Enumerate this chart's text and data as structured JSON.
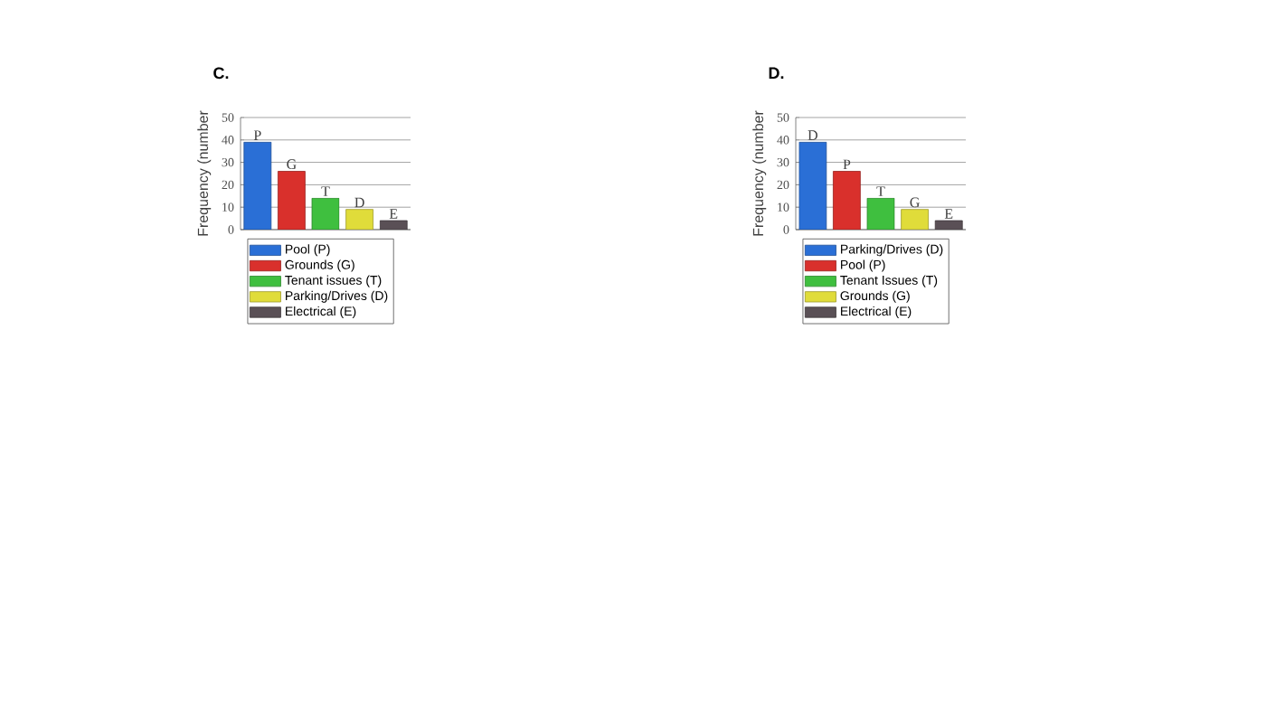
{
  "chart_data": [
    {
      "type": "bar",
      "title": "C.",
      "ylabel": "Frequency (number",
      "categories": [
        "P",
        "G",
        "T",
        "D",
        "E"
      ],
      "ylim": [
        0,
        50
      ],
      "yticks": [
        0,
        10,
        20,
        30,
        40,
        50
      ],
      "grid": "y",
      "legend": "bottom",
      "series": [
        {
          "name": "Pool (P)",
          "color": "#2a6fd6",
          "values": [
            39,
            null,
            null,
            null,
            null
          ]
        },
        {
          "name": "Grounds  (G)",
          "color": "#d9302c",
          "values": [
            null,
            26,
            null,
            null,
            null
          ]
        },
        {
          "name": "Tenant issues (T)",
          "color": "#3fbf3f",
          "values": [
            null,
            null,
            14,
            null,
            null
          ]
        },
        {
          "name": "Parking/Drives (D)",
          "color": "#e0dc3a",
          "values": [
            null,
            null,
            null,
            9,
            null
          ]
        },
        {
          "name": "Electrical (E)",
          "color": "#5a5056",
          "values": [
            null,
            null,
            null,
            null,
            4
          ]
        }
      ]
    },
    {
      "type": "bar",
      "title": "D.",
      "ylabel": "Frequency (number",
      "categories": [
        "D",
        "P",
        "T",
        "G",
        "E"
      ],
      "ylim": [
        0,
        50
      ],
      "yticks": [
        0,
        10,
        20,
        30,
        40,
        50
      ],
      "grid": "y",
      "legend": "bottom",
      "series": [
        {
          "name": "Parking/Drives (D)",
          "color": "#2a6fd6",
          "values": [
            39,
            null,
            null,
            null,
            null
          ]
        },
        {
          "name": "Pool (P)",
          "color": "#d9302c",
          "values": [
            null,
            26,
            null,
            null,
            null
          ]
        },
        {
          "name": "Tenant Issues (T)",
          "color": "#3fbf3f",
          "values": [
            null,
            null,
            14,
            null,
            null
          ]
        },
        {
          "name": "Grounds (G)",
          "color": "#e0dc3a",
          "values": [
            null,
            null,
            null,
            9,
            null
          ]
        },
        {
          "name": "Electrical (E)",
          "color": "#5a5056",
          "values": [
            null,
            null,
            null,
            null,
            4
          ]
        }
      ]
    }
  ]
}
